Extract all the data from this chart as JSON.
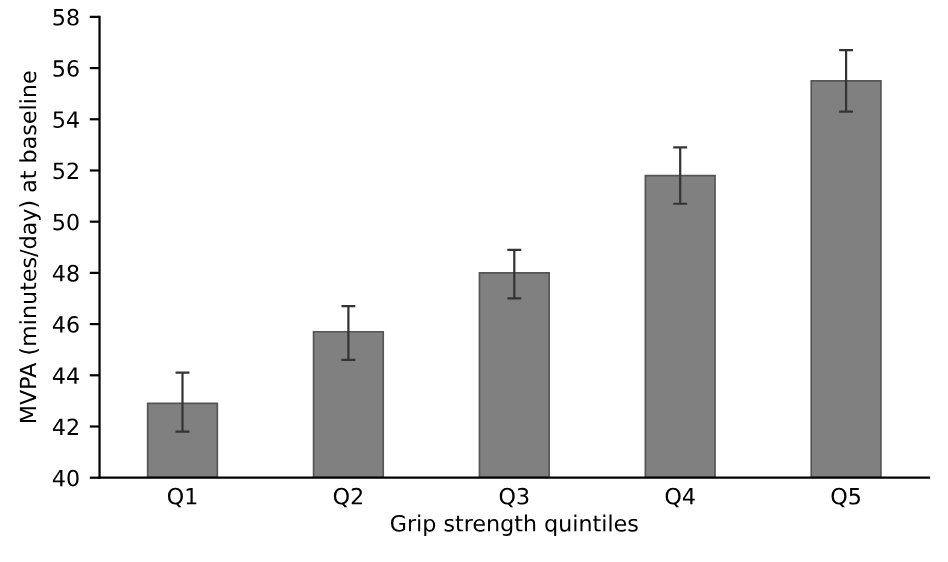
{
  "chart_data": {
    "type": "bar",
    "xlabel": "Grip strength quintiles",
    "ylabel": "MVPA (minutes/day) at baseline",
    "categories": [
      "Q1",
      "Q2",
      "Q3",
      "Q4",
      "Q5"
    ],
    "values": [
      42.9,
      45.7,
      48.0,
      51.8,
      55.5
    ],
    "errors": [
      [
        41.8,
        44.1
      ],
      [
        44.6,
        46.7
      ],
      [
        47.0,
        48.9
      ],
      [
        50.7,
        52.9
      ],
      [
        54.3,
        56.7
      ]
    ],
    "color": "#808080",
    "ylim": [
      40,
      58
    ],
    "yticks": [
      40,
      42,
      44,
      46,
      48,
      50,
      52,
      54,
      56,
      58
    ],
    "grid": false,
    "legend": false
  }
}
